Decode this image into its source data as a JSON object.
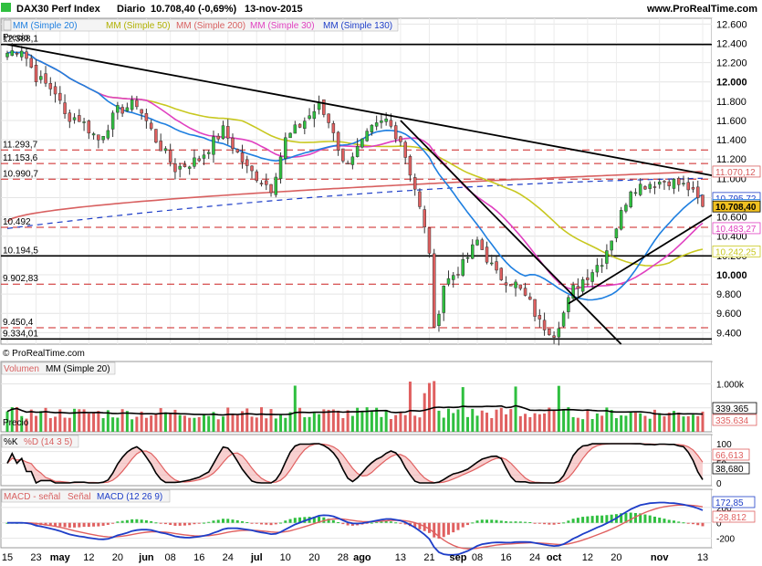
{
  "header": {
    "title": "DAX30 Perf Index",
    "period": "Diario",
    "price": "10.708,40 (-0,69%)",
    "date": "13-nov-2015",
    "site": "www.ProRealTime.com"
  },
  "legends": {
    "ma20": "MM (Simple 20)",
    "ma50": "MM (Simple 50)",
    "ma200": "MM (Simple 200)",
    "ma30": "MM (Simple 30)",
    "ma130": "MM (Simple 130)",
    "precio": "Precio",
    "copyright": "© ProRealTime.com",
    "volumen": "Volumen",
    "vol_ma": "MM (Simple 20)",
    "vol_precio": "Precio",
    "pk": "%K",
    "pd": "%D (14 3 5)",
    "macd_sig": "MACD - señal",
    "senal": "Señal",
    "macd": "MACD (12 26 9)"
  },
  "colors": {
    "up": "#2fbf3f",
    "down": "#e06060",
    "ma20": "#1e7fe0",
    "ma50": "#c8c820",
    "ma200": "#d86060",
    "ma30": "#e040c0",
    "ma130": "#1e3ec8",
    "trend": "#000000",
    "dashed": "#cc2020"
  },
  "price_axis": {
    "ticks": [
      "12.600",
      "12.400",
      "12.200",
      "12.000",
      "11.800",
      "11.600",
      "11.400",
      "11.200",
      "11.000",
      "10.800",
      "10.600",
      "10.400",
      "10.200",
      "10.000",
      "9.800",
      "9.600",
      "9.400"
    ],
    "tick_values": [
      12600,
      12400,
      12200,
      12000,
      11800,
      11600,
      11400,
      11200,
      11000,
      10800,
      10600,
      10400,
      10200,
      10000,
      9800,
      9600,
      9400
    ],
    "range": [
      9280,
      12660
    ]
  },
  "level_labels": [
    {
      "text": "12.388,1",
      "value": 12388
    },
    {
      "text": "11.293,7",
      "value": 11294
    },
    {
      "text": "11.153,6",
      "value": 11154
    },
    {
      "text": "10.990,7",
      "value": 10991
    },
    {
      "text": "10.492",
      "value": 10492
    },
    {
      "text": "10.194,5",
      "value": 10195
    },
    {
      "text": "9.902,83",
      "value": 9903
    },
    {
      "text": "9.450,4",
      "value": 9450
    },
    {
      "text": "9.334,01",
      "value": 9334
    }
  ],
  "right_tags": [
    {
      "text": "11.070,12",
      "value": 11070,
      "color": "#d86060",
      "bg": "#ffffff"
    },
    {
      "text": "10.795,72",
      "value": 10796,
      "color": "#1e3ec8",
      "bg": "#ffffff"
    },
    {
      "text": "10.724,14",
      "value": 10724,
      "color": "#1e7fe0",
      "bg": "#ffffff"
    },
    {
      "text": "10.708,40",
      "value": 10708,
      "color": "#000000",
      "bg": "#f0c020"
    },
    {
      "text": "10.483,27",
      "value": 10483,
      "color": "#e040c0",
      "bg": "#ffffff"
    },
    {
      "text": "10.242,25",
      "value": 10242,
      "color": "#c8c820",
      "bg": "#ffffff"
    }
  ],
  "volume_axis": {
    "ticks": [
      "1.000k",
      "500k"
    ],
    "tick_values": [
      1000,
      500
    ],
    "max": 1200
  },
  "volume_tags": [
    {
      "text": "339.365",
      "color": "#000000"
    },
    {
      "text": "335.634",
      "color": "#e06060"
    }
  ],
  "stoch_axis": {
    "ticks": [
      "100",
      "50",
      "0"
    ],
    "tick_values": [
      100,
      50,
      0
    ]
  },
  "stoch_tags": [
    {
      "text": "66,613",
      "color": "#e06060"
    },
    {
      "text": "38,680",
      "color": "#000000"
    }
  ],
  "macd_axis": {
    "ticks": [
      "200",
      "0",
      "-200"
    ],
    "tick_values": [
      200,
      0,
      -200
    ],
    "range": [
      -300,
      270
    ]
  },
  "macd_tags": [
    {
      "text": "172,85",
      "color": "#1e3ec8"
    },
    {
      "text": "-28,812",
      "color": "#e06060"
    }
  ],
  "x_axis": {
    "labels": [
      {
        "t": "15",
        "i": 0
      },
      {
        "t": "23",
        "i": 6
      },
      {
        "t": "may",
        "i": 11
      },
      {
        "t": "12",
        "i": 17
      },
      {
        "t": "20",
        "i": 23
      },
      {
        "t": "jun",
        "i": 29
      },
      {
        "t": "08",
        "i": 34
      },
      {
        "t": "16",
        "i": 40
      },
      {
        "t": "24",
        "i": 46
      },
      {
        "t": "jul",
        "i": 52
      },
      {
        "t": "10",
        "i": 58
      },
      {
        "t": "20",
        "i": 64
      },
      {
        "t": "28",
        "i": 70
      },
      {
        "t": "ago",
        "i": 74
      },
      {
        "t": "13",
        "i": 82
      },
      {
        "t": "21",
        "i": 88
      },
      {
        "t": "sep",
        "i": 94
      },
      {
        "t": "08",
        "i": 98
      },
      {
        "t": "16",
        "i": 104
      },
      {
        "t": "24",
        "i": 110
      },
      {
        "t": "oct",
        "i": 114
      },
      {
        "t": "12",
        "i": 121
      },
      {
        "t": "20",
        "i": 127
      },
      {
        "t": "nov",
        "i": 136
      },
      {
        "t": "13",
        "i": 145
      }
    ]
  },
  "chart_data": {
    "type": "candlestick",
    "title": "DAX30 Perf Index",
    "period": "Diario",
    "n_bars": 146,
    "price_anchors": [
      [
        0,
        12300
      ],
      [
        3,
        12350
      ],
      [
        6,
        12050
      ],
      [
        10,
        11900
      ],
      [
        12,
        11650
      ],
      [
        15,
        11620
      ],
      [
        19,
        11400
      ],
      [
        23,
        11700
      ],
      [
        27,
        11780
      ],
      [
        31,
        11400
      ],
      [
        35,
        11100
      ],
      [
        40,
        11200
      ],
      [
        45,
        11500
      ],
      [
        50,
        11100
      ],
      [
        55,
        10900
      ],
      [
        58,
        11400
      ],
      [
        62,
        11600
      ],
      [
        65,
        11750
      ],
      [
        68,
        11500
      ],
      [
        70,
        11150
      ],
      [
        73,
        11300
      ],
      [
        76,
        11500
      ],
      [
        79,
        11600
      ],
      [
        82,
        11400
      ],
      [
        85,
        10900
      ],
      [
        88,
        10250
      ],
      [
        89,
        9400
      ],
      [
        91,
        9900
      ],
      [
        95,
        10100
      ],
      [
        98,
        10350
      ],
      [
        102,
        10000
      ],
      [
        106,
        9900
      ],
      [
        109,
        9700
      ],
      [
        111,
        9500
      ],
      [
        114,
        9400
      ],
      [
        116,
        9600
      ],
      [
        118,
        9850
      ],
      [
        121,
        10000
      ],
      [
        124,
        10150
      ],
      [
        127,
        10500
      ],
      [
        130,
        10900
      ],
      [
        134,
        10950
      ],
      [
        138,
        10980
      ],
      [
        142,
        10900
      ],
      [
        145,
        10708
      ]
    ],
    "ma_levels": {
      "ma20_last": 10724,
      "ma50_last": 10242,
      "ma200_last": 11070,
      "ma30_last": 10483,
      "ma130_last": 10796
    },
    "levels": [
      12388,
      11294,
      11154,
      10991,
      10492,
      10195,
      9903,
      9450,
      9334
    ]
  }
}
